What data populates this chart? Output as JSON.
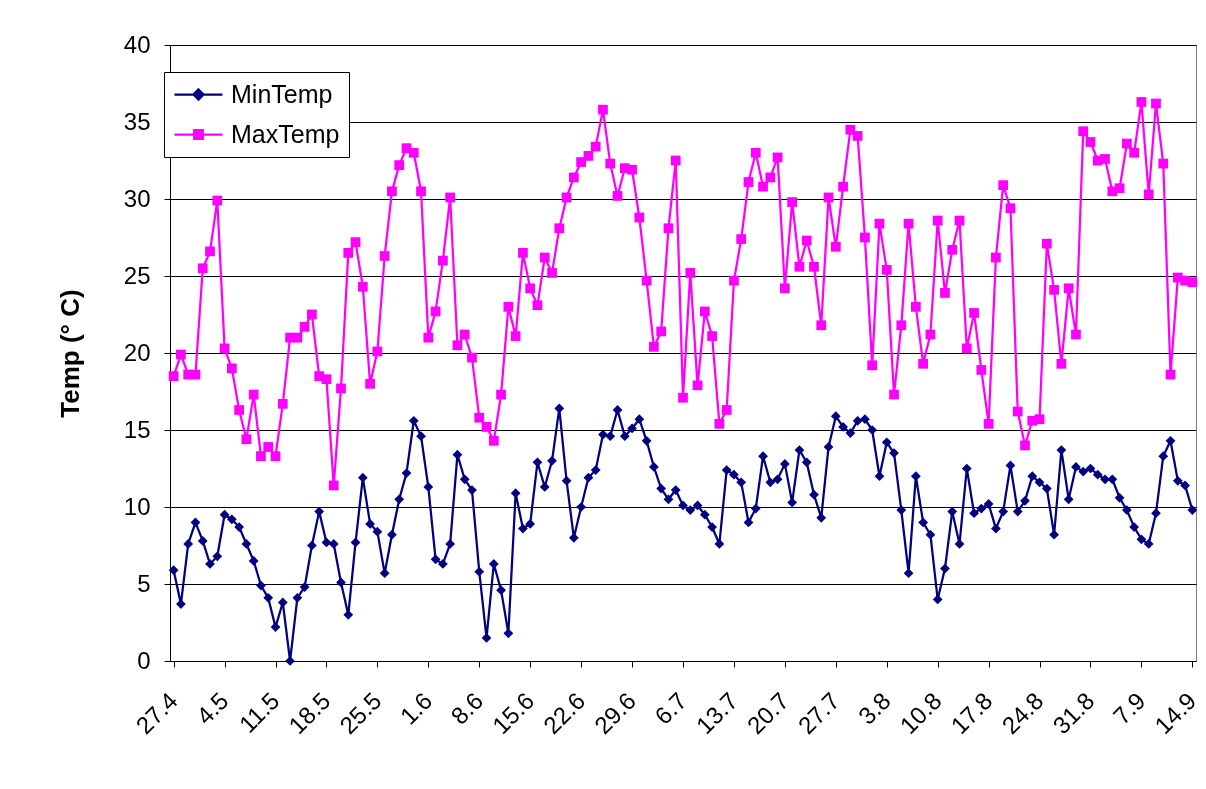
{
  "chart_data": {
    "type": "line",
    "ylabel": "Temp (° C)",
    "categories": [
      "27.4",
      null,
      null,
      null,
      null,
      null,
      null,
      "4.5",
      null,
      null,
      null,
      null,
      null,
      null,
      "11.5",
      null,
      null,
      null,
      null,
      null,
      null,
      "18.5",
      null,
      null,
      null,
      null,
      null,
      null,
      "25.5",
      null,
      null,
      null,
      null,
      null,
      null,
      "1.6",
      null,
      null,
      null,
      null,
      null,
      null,
      "8.6",
      null,
      null,
      null,
      null,
      null,
      null,
      "15.6",
      null,
      null,
      null,
      null,
      null,
      null,
      "22.6",
      null,
      null,
      null,
      null,
      null,
      null,
      "29.6",
      null,
      null,
      null,
      null,
      null,
      null,
      "6.7",
      null,
      null,
      null,
      null,
      null,
      null,
      "13.7",
      null,
      null,
      null,
      null,
      null,
      null,
      "20.7",
      null,
      null,
      null,
      null,
      null,
      null,
      "27.7",
      null,
      null,
      null,
      null,
      null,
      null,
      "3.8",
      null,
      null,
      null,
      null,
      null,
      null,
      "10.8",
      null,
      null,
      null,
      null,
      null,
      null,
      "17.8",
      null,
      null,
      null,
      null,
      null,
      null,
      "24.8",
      null,
      null,
      null,
      null,
      null,
      null,
      "31.8",
      null,
      null,
      null,
      null,
      null,
      null,
      "7.9",
      null,
      null,
      null,
      null,
      null,
      null,
      "14.9"
    ],
    "series": [
      {
        "name": "MinTemp",
        "color": "#000080",
        "marker": "diamond",
        "values": [
          5.9,
          3.7,
          7.6,
          9.0,
          7.8,
          6.3,
          6.8,
          9.5,
          9.2,
          8.7,
          7.6,
          6.5,
          4.9,
          4.1,
          2.2,
          3.8,
          0.0,
          4.1,
          4.8,
          7.5,
          9.7,
          7.7,
          7.6,
          5.1,
          3.0,
          7.7,
          11.9,
          8.9,
          8.4,
          5.7,
          8.2,
          10.5,
          12.2,
          15.6,
          14.6,
          11.3,
          6.6,
          6.3,
          7.6,
          13.4,
          11.8,
          11.1,
          5.8,
          1.5,
          6.3,
          4.6,
          1.8,
          10.9,
          8.6,
          8.9,
          12.9,
          11.3,
          13.0,
          16.4,
          11.7,
          8.0,
          10.0,
          11.9,
          12.4,
          14.7,
          14.6,
          16.3,
          14.6,
          15.1,
          15.7,
          14.3,
          12.6,
          11.2,
          10.5,
          11.1,
          10.1,
          9.8,
          10.1,
          9.5,
          8.7,
          7.6,
          12.4,
          12.1,
          11.6,
          9.0,
          9.9,
          13.3,
          11.6,
          11.8,
          12.8,
          10.3,
          13.7,
          12.9,
          10.8,
          9.3,
          13.9,
          15.9,
          15.2,
          14.8,
          15.6,
          15.7,
          15.0,
          12.0,
          14.2,
          13.5,
          9.8,
          5.7,
          12.0,
          9.0,
          8.2,
          4.0,
          6.0,
          9.7,
          7.6,
          12.5,
          9.6,
          9.9,
          10.2,
          8.6,
          9.7,
          12.7,
          9.7,
          10.4,
          12.0,
          11.6,
          11.2,
          8.2,
          13.7,
          10.5,
          12.6,
          12.3,
          12.5,
          12.1,
          11.8,
          11.8,
          10.6,
          9.8,
          8.7,
          7.9,
          7.6,
          9.6,
          13.3,
          14.3,
          11.7,
          11.4,
          9.8
        ]
      },
      {
        "name": "MaxTemp",
        "color": "#ff00ff",
        "marker": "square",
        "values": [
          18.5,
          19.9,
          18.6,
          18.6,
          25.5,
          26.6,
          29.9,
          20.3,
          19.0,
          16.3,
          14.4,
          17.3,
          13.3,
          13.9,
          13.3,
          16.7,
          21.0,
          21.0,
          21.7,
          22.5,
          18.5,
          18.3,
          11.4,
          17.7,
          26.5,
          27.2,
          24.3,
          18.0,
          20.1,
          26.3,
          30.5,
          32.2,
          33.3,
          33.0,
          30.5,
          21.0,
          22.7,
          26.0,
          30.1,
          20.5,
          21.2,
          19.7,
          15.8,
          15.2,
          14.3,
          17.3,
          23.0,
          21.1,
          26.5,
          24.2,
          23.1,
          26.2,
          25.2,
          28.1,
          30.1,
          31.4,
          32.4,
          32.8,
          33.4,
          35.8,
          32.3,
          30.2,
          32.0,
          31.9,
          28.8,
          24.7,
          20.4,
          21.4,
          28.1,
          32.5,
          17.1,
          25.2,
          17.9,
          22.7,
          21.1,
          15.4,
          16.3,
          24.7,
          27.4,
          31.1,
          33.0,
          30.8,
          31.4,
          32.7,
          24.2,
          29.8,
          25.6,
          27.3,
          25.6,
          21.8,
          30.1,
          26.9,
          30.8,
          34.5,
          34.1,
          27.5,
          19.2,
          28.4,
          25.4,
          17.3,
          21.8,
          28.4,
          23.0,
          19.3,
          21.2,
          28.6,
          23.9,
          26.7,
          28.6,
          20.3,
          22.6,
          18.9,
          15.4,
          26.2,
          30.9,
          29.4,
          16.2,
          14.0,
          15.6,
          15.7,
          27.1,
          24.1,
          19.3,
          24.2,
          21.2,
          34.4,
          33.7,
          32.5,
          32.6,
          30.5,
          30.7,
          33.6,
          33.0,
          36.3,
          30.3,
          36.2,
          32.3,
          18.6,
          24.9,
          24.7,
          24.6
        ]
      }
    ],
    "ylim": [
      0,
      40
    ],
    "yticks": [
      0,
      5,
      10,
      15,
      20,
      25,
      30,
      35,
      40
    ],
    "grid": "y",
    "legend": "top left"
  }
}
